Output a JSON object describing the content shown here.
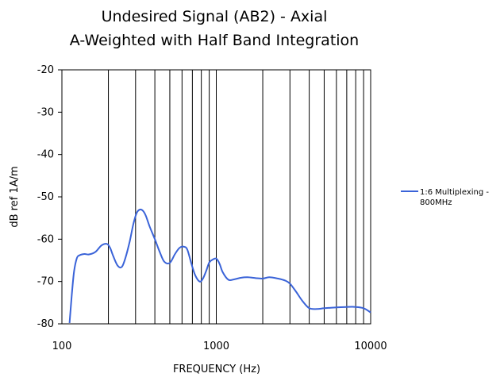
{
  "chart_data": {
    "type": "line",
    "title": "Undesired Signal (AB2) - Axial",
    "subtitle": "A-Weighted with Half Band Integration",
    "xlabel": "FREQUENCY (Hz)",
    "ylabel": "dB ref 1A/m",
    "x_scale": "log",
    "xlim": [
      100,
      10000
    ],
    "ylim": [
      -80,
      -20
    ],
    "x_ticks": [
      "100",
      "1000",
      "10000"
    ],
    "y_ticks": [
      "-20",
      "-30",
      "-40",
      "-50",
      "-60",
      "-70",
      "-80"
    ],
    "grid": "vertical-log",
    "legend_position": "right",
    "colors": {
      "series": "#3a63d8",
      "axis": "#000000",
      "grid": "#000000"
    },
    "series": [
      {
        "name": "1:6 Multiplexing - 800MHz",
        "x": [
          112,
          116,
          120,
          125,
          130,
          140,
          150,
          165,
          180,
          195,
          205,
          215,
          230,
          245,
          260,
          275,
          290,
          305,
          320,
          335,
          350,
          370,
          400,
          430,
          460,
          500,
          540,
          580,
          620,
          650,
          690,
          730,
          780,
          820,
          860,
          900,
          950,
          1000,
          1050,
          1100,
          1200,
          1300,
          1450,
          1600,
          1800,
          2000,
          2200,
          2500,
          2800,
          3000,
          3300,
          3600,
          4000,
          4500,
          5000,
          5500,
          6000,
          7000,
          8000,
          9000,
          10000
        ],
        "y": [
          -79.8,
          -73,
          -67.5,
          -64.5,
          -63.8,
          -63.5,
          -63.6,
          -63,
          -61.5,
          -61.1,
          -62,
          -64,
          -66.3,
          -66.5,
          -64,
          -60.5,
          -56.5,
          -53.8,
          -53,
          -53.3,
          -54.5,
          -57,
          -60,
          -63,
          -65.3,
          -65.6,
          -63.5,
          -62,
          -61.8,
          -62.5,
          -65.8,
          -68.5,
          -70,
          -69.3,
          -67.5,
          -65.5,
          -64.8,
          -64.6,
          -65.8,
          -67.8,
          -69.6,
          -69.5,
          -69.1,
          -69,
          -69.2,
          -69.3,
          -69,
          -69.3,
          -69.8,
          -70.5,
          -72.5,
          -74.5,
          -76.3,
          -76.5,
          -76.3,
          -76.2,
          -76.1,
          -76,
          -76,
          -76.3,
          -77.3
        ]
      }
    ]
  }
}
